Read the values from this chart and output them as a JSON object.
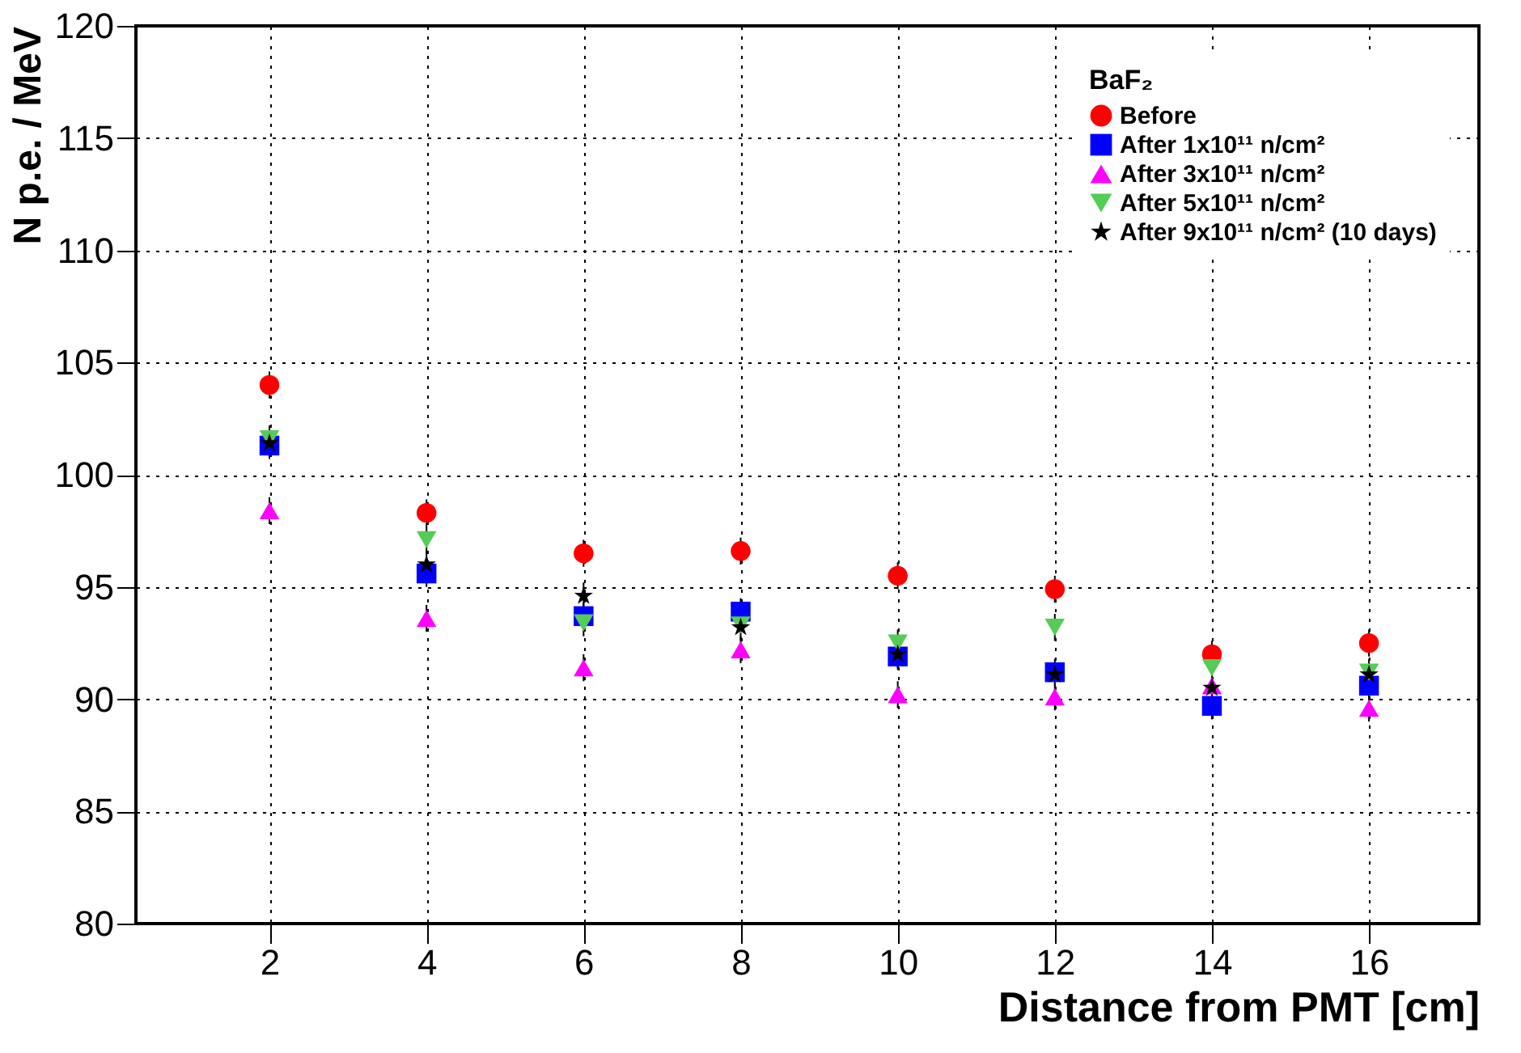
{
  "chart_data": {
    "type": "scatter",
    "xlabel": "Distance from PMT [cm]",
    "ylabel": "N p.e. / MeV",
    "legend_title": "BaF₂",
    "x": [
      2,
      4,
      6,
      8,
      10,
      12,
      14,
      16
    ],
    "series": [
      {
        "name": "Before",
        "color": "#ff0000",
        "marker": "circle",
        "values": [
          104.0,
          98.3,
          96.5,
          96.6,
          95.5,
          94.9,
          92.0,
          92.5
        ],
        "errors": [
          0.6,
          0.6,
          0.6,
          0.6,
          0.6,
          0.6,
          0.6,
          0.6
        ]
      },
      {
        "name": "After 1x10¹¹ n/cm²",
        "color": "#0000ff",
        "marker": "square",
        "values": [
          101.3,
          95.6,
          93.7,
          93.9,
          91.9,
          91.2,
          89.7,
          90.6
        ],
        "errors": [
          0.6,
          0.6,
          0.6,
          0.6,
          0.6,
          0.6,
          0.6,
          0.6
        ]
      },
      {
        "name": "After 3x10¹¹ n/cm²",
        "color": "#ff00ff",
        "marker": "triangle",
        "values": [
          98.4,
          93.6,
          91.4,
          92.2,
          90.2,
          90.1,
          90.6,
          89.6
        ],
        "errors": [
          0.6,
          0.6,
          0.6,
          0.6,
          0.6,
          0.6,
          null,
          0.6
        ]
      },
      {
        "name": "After 5x10¹¹ n/cm²",
        "color": "#55cc55",
        "marker": "triangle-down",
        "values": [
          101.6,
          97.1,
          93.4,
          93.3,
          92.5,
          93.2,
          91.4,
          91.2
        ],
        "errors": [
          0.6,
          0.6,
          0.6,
          null,
          0.6,
          0.6,
          0.6,
          0.6
        ]
      },
      {
        "name": "After 9x10¹¹ n/cm² (10 days)",
        "color": "#000000",
        "marker": "star",
        "values": [
          101.4,
          96.0,
          94.6,
          93.2,
          92.0,
          91.1,
          90.5,
          91.1
        ],
        "errors": [
          0.6,
          0.6,
          0.6,
          0.6,
          0.6,
          null,
          null,
          null
        ]
      }
    ],
    "xlim": [
      0.3,
      17.4
    ],
    "xticks": [
      2,
      4,
      6,
      8,
      10,
      12,
      14,
      16
    ],
    "ylim": [
      80,
      120
    ],
    "yticks": [
      80,
      85,
      90,
      95,
      100,
      105,
      110,
      115,
      120
    ],
    "grid": true,
    "legend": "top right"
  }
}
